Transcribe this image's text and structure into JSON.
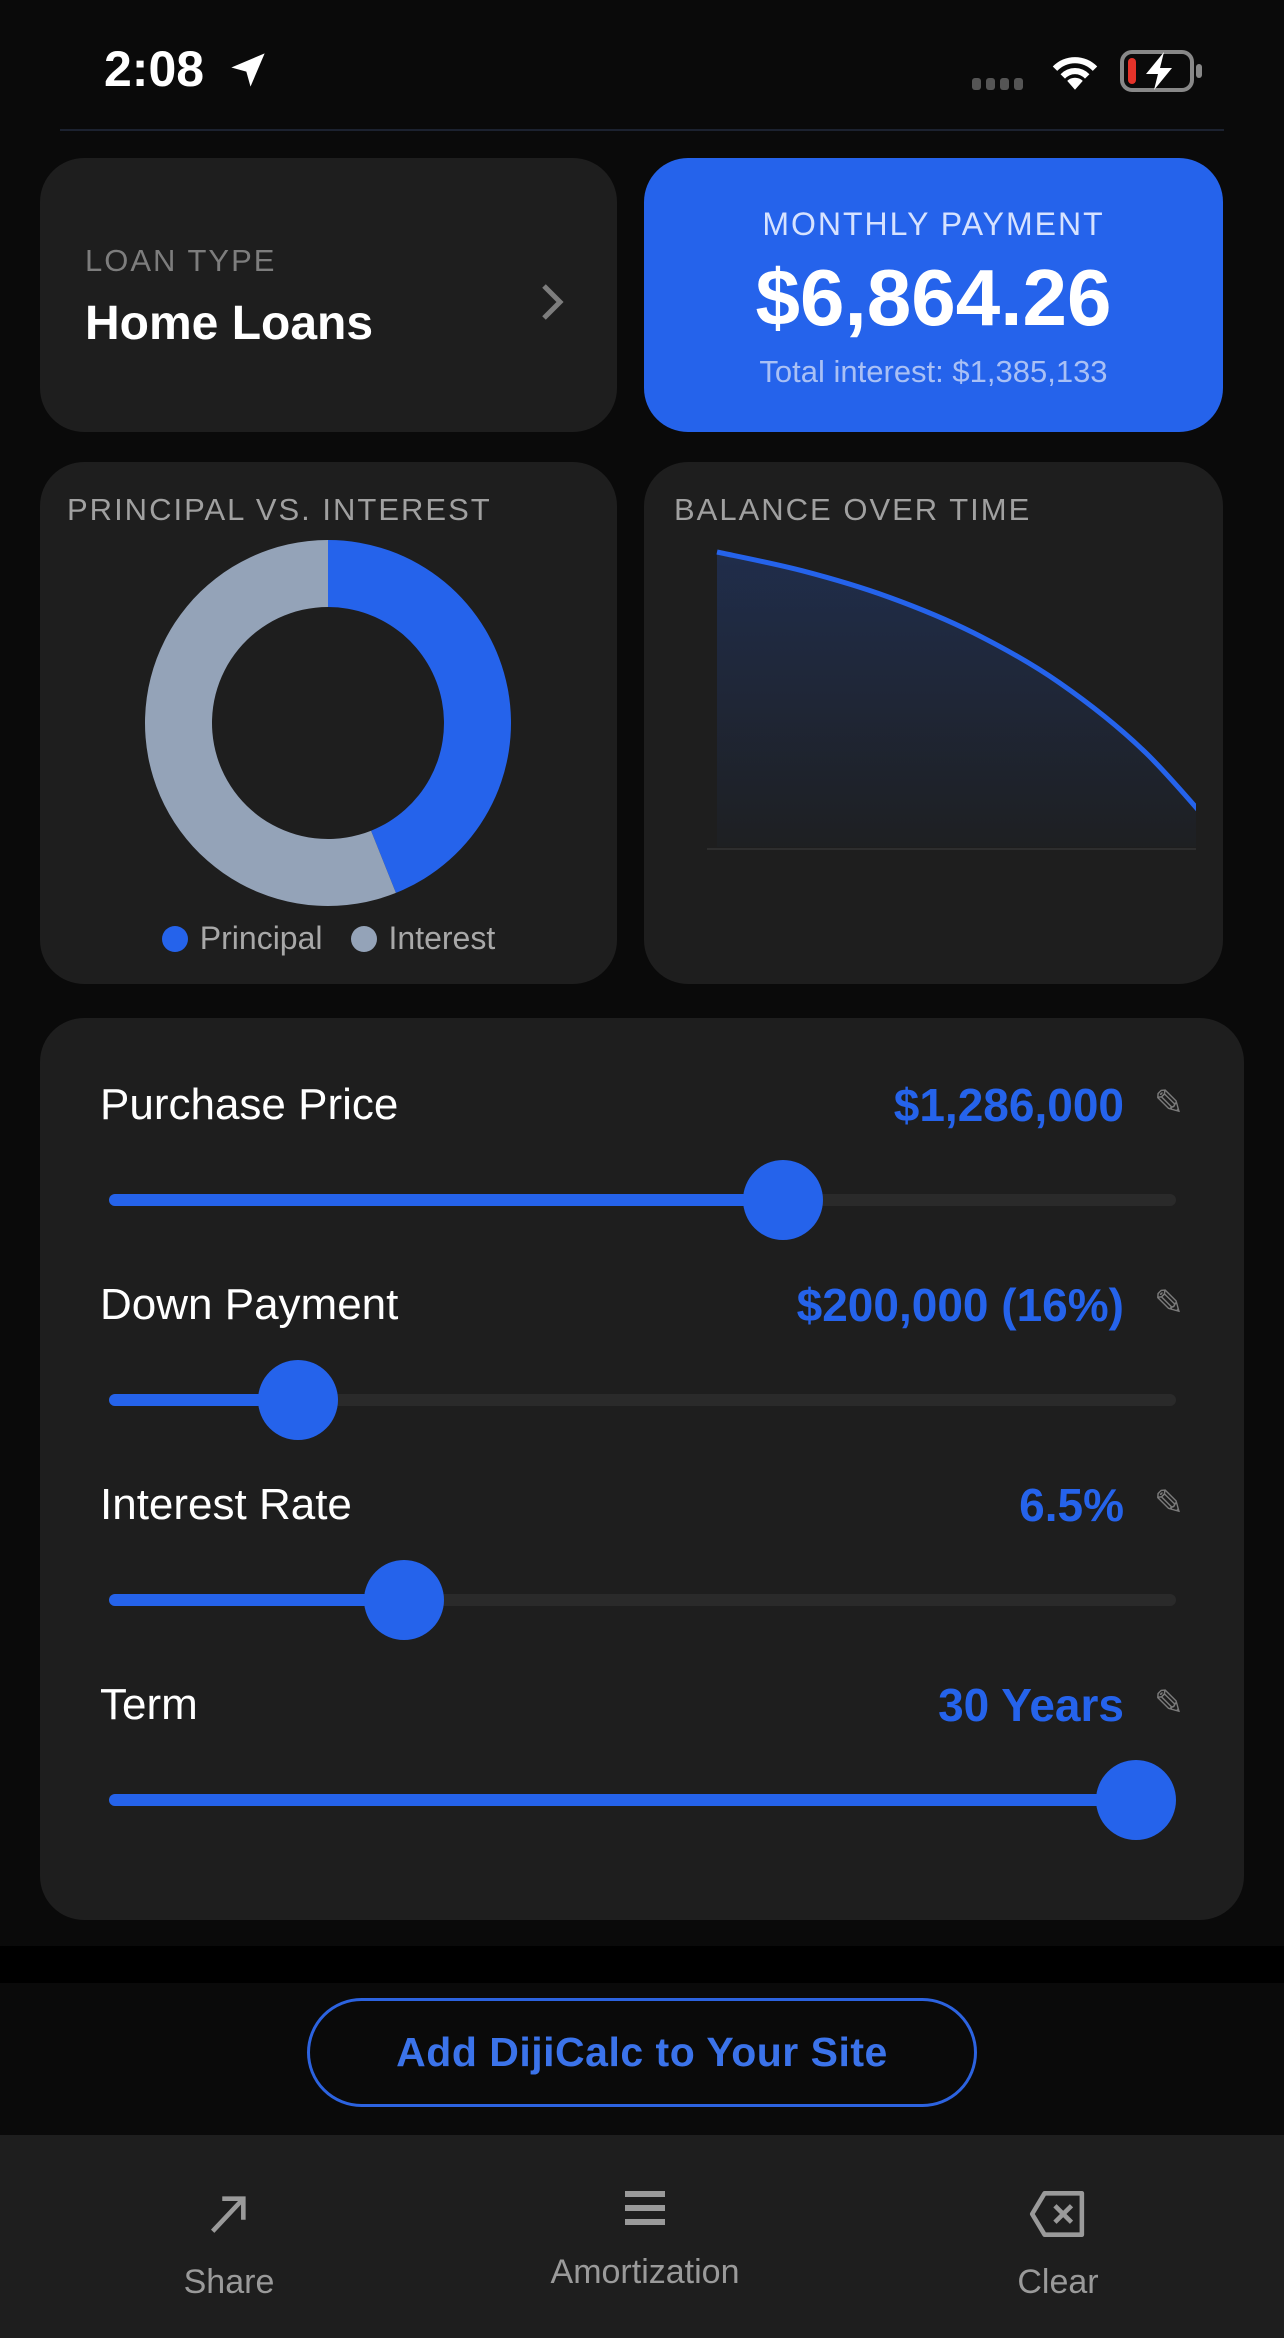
{
  "status_bar": {
    "time": "2:08",
    "location_icon": "location-arrow-icon",
    "wifi_icon": "wifi-icon",
    "battery_icon": "battery-charging-low-icon"
  },
  "loan_type": {
    "label": "LOAN TYPE",
    "value": "Home Loans",
    "chevron_icon": "chevron-right-icon"
  },
  "monthly": {
    "label": "MONTHLY PAYMENT",
    "value": "$6,864.26",
    "total_interest": "Total interest: $1,385,133"
  },
  "donut": {
    "title": "PRINCIPAL VS. INTEREST",
    "legend": [
      "Principal",
      "Interest"
    ]
  },
  "balance": {
    "title": "BALANCE OVER TIME"
  },
  "chart_data": [
    {
      "type": "pie",
      "title": "PRINCIPAL VS. INTEREST",
      "categories": [
        "Principal",
        "Interest"
      ],
      "values": [
        1086000,
        1385133
      ],
      "colors": [
        "#2563eb",
        "#94a3b8"
      ],
      "donut": true,
      "legend_placement": "bottom"
    },
    {
      "type": "area",
      "title": "BALANCE OVER TIME",
      "x": [
        0,
        5,
        10,
        15,
        20,
        25,
        30
      ],
      "y": [
        1086000,
        1016600,
        920800,
        788100,
        605300,
        350900,
        0
      ],
      "xlim": [
        0,
        28
      ],
      "ylim": [
        0,
        1086000
      ],
      "color": "#2563eb",
      "grid": false
    }
  ],
  "sliders": [
    {
      "label": "Purchase Price",
      "value": "$1,286,000",
      "fraction": 0.642
    },
    {
      "label": "Down Payment",
      "value": "$200,000 (16%)",
      "fraction": 0.151
    },
    {
      "label": "Interest Rate",
      "value": "6.5%",
      "fraction": 0.258
    },
    {
      "label": "Term",
      "value": "30 Years",
      "fraction": 1.0
    }
  ],
  "edit_icon": "✎",
  "cta": {
    "label": "Add DijiCalc to Your Site"
  },
  "tabs": [
    {
      "label": "Share",
      "icon": "share-arrow-icon"
    },
    {
      "label": "Amortization",
      "icon": "list-icon"
    },
    {
      "label": "Clear",
      "icon": "backspace-clear-icon"
    }
  ],
  "colors": {
    "accent": "#2563eb",
    "interest": "#94a3b8",
    "card": "#1e1e1e",
    "background": "#0a0a0a"
  }
}
